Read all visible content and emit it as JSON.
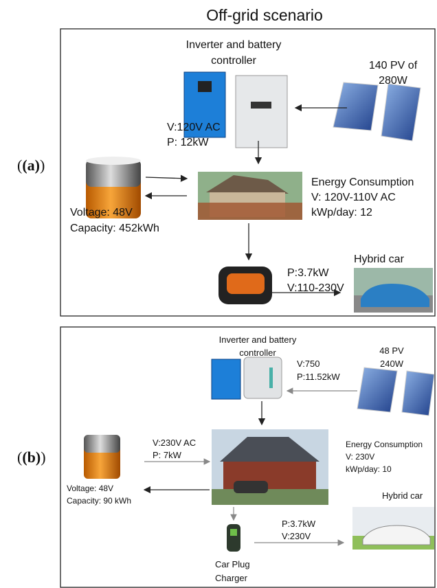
{
  "title": "Off-grid scenario",
  "panels": [
    {
      "label": "(a)",
      "inverter": [
        "Inverter and battery",
        "controller"
      ],
      "pv": [
        "140 PV of",
        "280W"
      ],
      "inverter_output": [
        "V:120V AC",
        "P: 12kW"
      ],
      "consumption": [
        "Energy Consumption",
        "V: 120V-110V AC",
        "kWp/day: 12"
      ],
      "battery": [
        "Voltage: 48V",
        "Capacity: 452kWh"
      ],
      "car": "Hybrid car",
      "charger_output": [
        "P:3.7kW",
        "V:110-230V"
      ]
    },
    {
      "label": "(b)",
      "inverter": [
        "Inverter and battery",
        "controller"
      ],
      "pv": [
        "48 PV",
        "240W"
      ],
      "pv_output": [
        "V:750",
        "P:11.52kW"
      ],
      "inverter_output": [
        "V:230V AC",
        "P: 7kW"
      ],
      "consumption": [
        "Energy Consumption",
        "V: 230V",
        "kWp/day: 10"
      ],
      "battery": [
        "Voltage: 48V",
        "Capacity: 90 kWh"
      ],
      "car": "Hybrid car",
      "charger_output": [
        "P:3.7kW",
        "V:230V"
      ],
      "charger": [
        "Car Plug",
        "Charger"
      ]
    }
  ]
}
